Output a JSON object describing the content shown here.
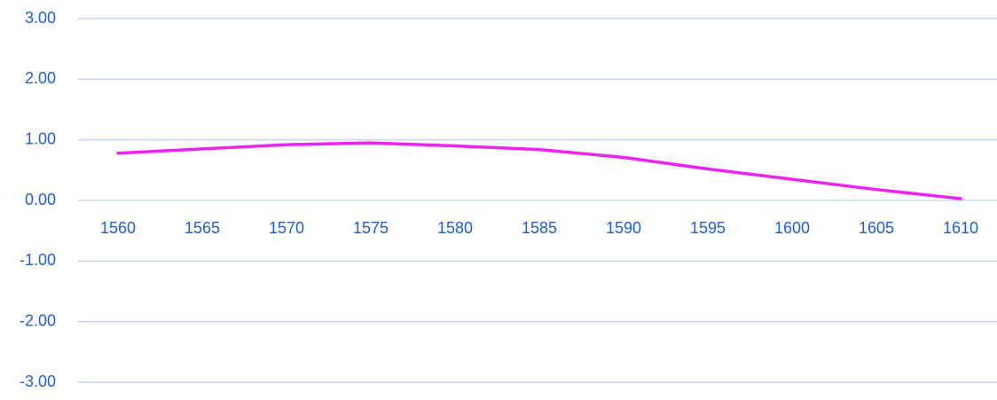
{
  "chart_data": {
    "type": "line",
    "x": [
      1560,
      1565,
      1570,
      1575,
      1580,
      1585,
      1590,
      1595,
      1600,
      1605,
      1610
    ],
    "series": [
      {
        "color": "#ee22ee",
        "values": [
          0.78,
          0.85,
          0.92,
          0.95,
          0.9,
          0.84,
          0.71,
          0.52,
          0.35,
          0.18,
          0.03
        ]
      }
    ],
    "xlim": [
      1560,
      1610
    ],
    "xticks": [
      1560,
      1565,
      1570,
      1575,
      1580,
      1585,
      1590,
      1595,
      1600,
      1605,
      1610
    ],
    "ylim": [
      -3,
      3
    ],
    "yticks": [
      {
        "value": -3,
        "label": "-3.00"
      },
      {
        "value": -2,
        "label": "-2.00"
      },
      {
        "value": -1,
        "label": "-1.00"
      },
      {
        "value": 0,
        "label": "0.00"
      },
      {
        "value": 1,
        "label": "1.00"
      },
      {
        "value": 2,
        "label": "2.00"
      },
      {
        "value": 3,
        "label": "3.00"
      }
    ],
    "grid": true
  }
}
